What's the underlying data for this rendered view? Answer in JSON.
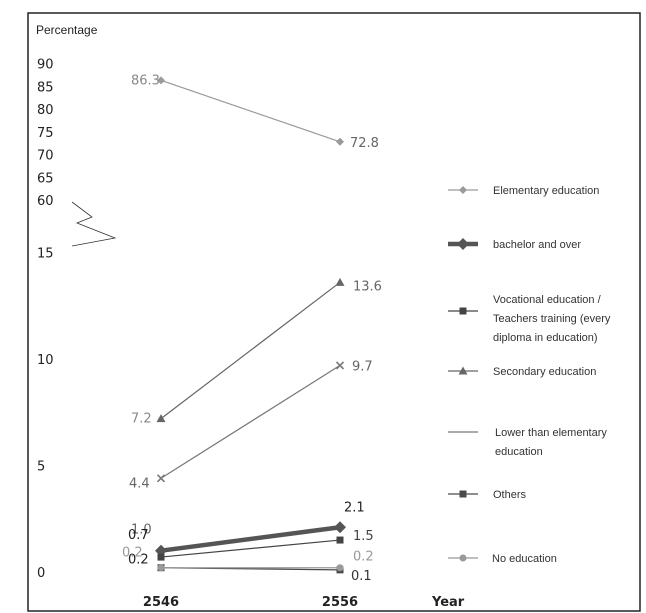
{
  "chart_data": {
    "type": "line",
    "ylabel": "Percentage",
    "xlabel": "Year",
    "categories": [
      "2546",
      "2556"
    ],
    "y_ticks_upper": [
      "90",
      "85",
      "80",
      "75",
      "70",
      "65",
      "60"
    ],
    "y_ticks_lower": [
      "15",
      "10",
      "5",
      "0"
    ],
    "axis_break": true,
    "ylim_lower": [
      0,
      15
    ],
    "ylim_upper": [
      60,
      90
    ],
    "legend_position": "right",
    "series": [
      {
        "name": "Elementary education",
        "values": [
          86.3,
          72.8
        ],
        "labels": [
          "86.3",
          "72.8"
        ],
        "color": "#9a9a9a",
        "marker": "diamond"
      },
      {
        "name": "bachelor and over",
        "values": [
          1.0,
          2.1
        ],
        "labels": [
          "1.0",
          "2.1"
        ],
        "color": "#555555",
        "marker": "thick-diamond"
      },
      {
        "name": "Vocational education / Teachers training (every diploma in education)",
        "legend_lines": [
          "Vocational education /",
          "Teachers training (every",
          "diploma in education)"
        ],
        "values": [
          0.7,
          1.5
        ],
        "labels": [
          "0.7",
          "1.5"
        ],
        "color": "#444444",
        "marker": "square"
      },
      {
        "name": "Secondary education",
        "values": [
          7.2,
          13.6
        ],
        "labels": [
          "7.2",
          "13.6"
        ],
        "color": "#666666",
        "marker": "triangle"
      },
      {
        "name": "Lower than elementary education",
        "legend_lines": [
          "Lower than elementary",
          "education"
        ],
        "values": [
          4.4,
          9.7
        ],
        "labels": [
          "4.4",
          "9.7"
        ],
        "color": "#777777",
        "marker": "x"
      },
      {
        "name": "Others",
        "values": [
          0.2,
          0.1
        ],
        "labels": [
          "0.2",
          "0.1"
        ],
        "color": "#4a4a4a",
        "marker": "square"
      },
      {
        "name": "No education",
        "values": [
          0.2,
          0.2
        ],
        "labels": [
          "0.2",
          "0.2"
        ],
        "color": "#999999",
        "marker": "circle"
      }
    ]
  }
}
